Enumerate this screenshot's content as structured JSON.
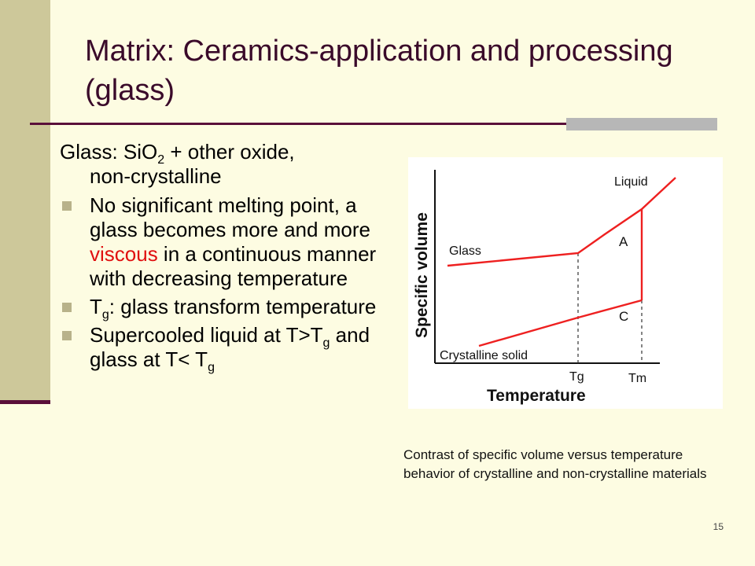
{
  "slide": {
    "title": "Matrix: Ceramics-application and processing (glass)",
    "page_number": "15"
  },
  "body": {
    "intro_prefix": "Glass: SiO",
    "intro_sub": "2",
    "intro_suffix": " + other oxide,",
    "intro_line2": "non-crystalline",
    "bullet1_before": "No significant melting point, a glass becomes more and more ",
    "bullet1_highlight": "viscous",
    "bullet1_after": " in a continuous manner with decreasing temperature",
    "bullet2_prefix": "T",
    "bullet2_sub": "g",
    "bullet2_suffix": ": glass transform temperature",
    "bullet3_part1": "Supercooled liquid at T>T",
    "bullet3_sub1": "g",
    "bullet3_part2": " and glass at T< T",
    "bullet3_sub2": "g"
  },
  "figure": {
    "ylabel": "Specific volume",
    "xlabel": "Temperature",
    "label_liquid": "Liquid",
    "label_glass": "Glass",
    "label_a": "A",
    "label_c": "C",
    "label_crystalline": "Crystalline solid",
    "tick_tg": "Tg",
    "tick_tm": "Tm",
    "line_color": "#ee2020"
  },
  "caption": "Contrast of specific volume versus temperature behavior of crystalline and non-crystalline materials",
  "colors": {
    "background": "#fdfce2",
    "left_band": "#cdc89a",
    "accent_rule": "#5a0f3a",
    "highlight": "#e01010"
  }
}
